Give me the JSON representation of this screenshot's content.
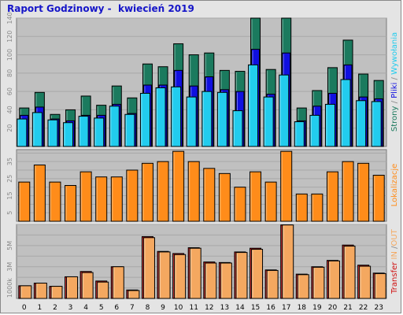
{
  "title": "Raport Godzinowy -  kwiecień 2019",
  "colors": {
    "frame_bg": "#e4e4e4",
    "plot_bg": "#c0c0c0",
    "grid": "#a8a8a8",
    "title": "#1515c8",
    "pages": "#1b7a5e",
    "files": "#1010e0",
    "visits": "#22ccee",
    "hosts": "#ff8c1a",
    "in": "#d01010",
    "out": "#f4a860"
  },
  "chart_data": [
    {
      "type": "bar",
      "categories": [
        "0",
        "1",
        "2",
        "3",
        "4",
        "5",
        "6",
        "7",
        "8",
        "9",
        "10",
        "11",
        "12",
        "13",
        "14",
        "15",
        "16",
        "17",
        "18",
        "19",
        "20",
        "21",
        "22",
        "23"
      ],
      "ylim": [
        0,
        140
      ],
      "yticks": [
        "20",
        "40",
        "60",
        "80",
        "100",
        "120",
        "140"
      ],
      "ylabel": "Strony / Pliki / Wywołania",
      "ylabel_parts": [
        "Strony",
        " / ",
        "Pliki",
        " / ",
        "Wywołania"
      ],
      "series": [
        {
          "name": "Wywołania",
          "values": [
            42,
            59,
            35,
            40,
            55,
            45,
            66,
            53,
            90,
            87,
            112,
            100,
            102,
            83,
            82,
            140,
            84,
            140,
            42,
            61,
            86,
            116,
            79,
            72
          ]
        },
        {
          "name": "Pliki",
          "values": [
            34,
            43,
            30,
            28,
            34,
            34,
            46,
            36,
            67,
            67,
            83,
            66,
            76,
            62,
            60,
            106,
            57,
            102,
            28,
            44,
            58,
            89,
            54,
            52
          ]
        },
        {
          "name": "Strony",
          "values": [
            30,
            37,
            29,
            26,
            33,
            31,
            44,
            35,
            58,
            64,
            65,
            54,
            60,
            59,
            39,
            89,
            54,
            78,
            27,
            34,
            46,
            73,
            50,
            49
          ]
        }
      ]
    },
    {
      "type": "bar",
      "categories": [
        "0",
        "1",
        "2",
        "3",
        "4",
        "5",
        "6",
        "7",
        "8",
        "9",
        "10",
        "11",
        "12",
        "13",
        "14",
        "15",
        "16",
        "17",
        "18",
        "19",
        "20",
        "21",
        "22",
        "23"
      ],
      "ylim": [
        0,
        42
      ],
      "yticks": [
        "5",
        "15",
        "25",
        "35"
      ],
      "ylabel": "Lokalizacje",
      "series": [
        {
          "name": "Lokalizacje",
          "values": [
            23,
            33,
            23,
            21,
            29,
            26,
            26,
            30,
            34,
            35,
            41,
            35,
            31,
            28,
            20,
            29,
            23,
            41,
            16,
            16,
            29,
            35,
            34,
            27
          ]
        }
      ]
    },
    {
      "type": "bar",
      "categories": [
        "0",
        "1",
        "2",
        "3",
        "4",
        "5",
        "6",
        "7",
        "8",
        "9",
        "10",
        "11",
        "12",
        "13",
        "14",
        "15",
        "16",
        "17",
        "18",
        "19",
        "20",
        "21",
        "22",
        "23"
      ],
      "ylim": [
        0,
        7000
      ],
      "yticks": [
        "1000k",
        "3M",
        "5M"
      ],
      "ylabel": "Transfer IN / OUT",
      "ylabel_parts": [
        "Transfer",
        " IN ",
        "/",
        "OUT"
      ],
      "series": [
        {
          "name": "IN",
          "values": [
            1200,
            1450,
            1150,
            2050,
            2550,
            1650,
            3000,
            800,
            5850,
            4450,
            4250,
            4800,
            3450,
            3400,
            4400,
            4750,
            2700,
            6950,
            2300,
            3000,
            3600,
            5050,
            3150,
            2400
          ]
        },
        {
          "name": "OUT",
          "values": [
            1200,
            1450,
            1150,
            2050,
            2450,
            1550,
            3000,
            750,
            5750,
            4400,
            4150,
            4750,
            3350,
            3350,
            4350,
            4650,
            2650,
            6950,
            2250,
            2950,
            3550,
            4950,
            3050,
            2350
          ]
        }
      ]
    }
  ]
}
